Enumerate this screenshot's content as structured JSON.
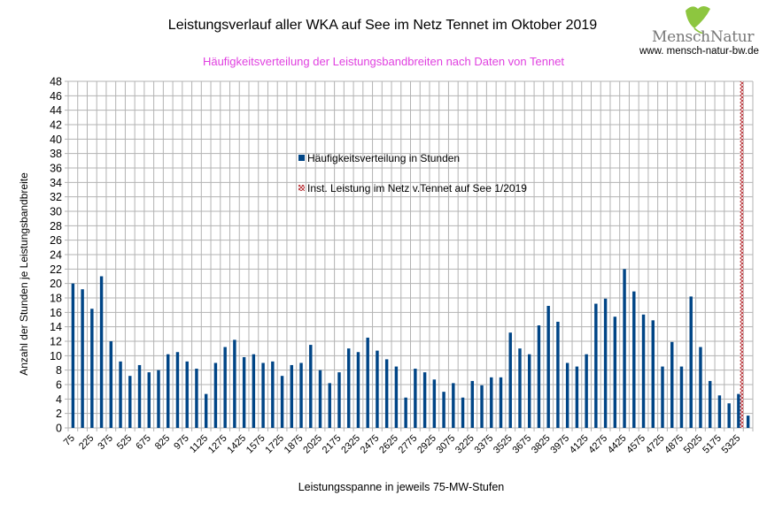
{
  "header": {
    "title": "Leistungsverlauf aller WKA auf See im Netz Tennet im Oktober 2019",
    "subtitle": "Häufigkeitsverteilung der Leistungsbandbreiten nach Daten von Tennet",
    "logo_text_a": "Mensch",
    "logo_text_b": "Natur",
    "logo_url": "www. mensch-natur-bw.de"
  },
  "colors": {
    "bar": "#004586",
    "hatch": "#b5272d",
    "subtitle": "#e040e0",
    "grid": "#b3b3b3",
    "logo_leaf": "#8dc63f",
    "logo_text": "#7a7a7a"
  },
  "chart_data": {
    "type": "bar",
    "title": "Leistungsverlauf aller WKA auf See im Netz Tennet im Oktober 2019",
    "subtitle": "Häufigkeitsverteilung der Leistungsbandbreiten nach Daten von Tennet",
    "xlabel": "Leistungsspanne in jeweils 75-MW-Stufen",
    "ylabel": "Anzahl der Stunden je Leistungsbandbreite",
    "ylim": [
      0,
      48
    ],
    "ytick_step": 2,
    "grid": true,
    "legend_position": "center",
    "categories": [
      75,
      150,
      225,
      300,
      375,
      450,
      525,
      600,
      675,
      750,
      825,
      900,
      975,
      1050,
      1125,
      1200,
      1275,
      1350,
      1425,
      1500,
      1575,
      1650,
      1725,
      1800,
      1875,
      1950,
      2025,
      2100,
      2175,
      2250,
      2325,
      2400,
      2475,
      2550,
      2625,
      2700,
      2775,
      2850,
      2925,
      3000,
      3075,
      3150,
      3225,
      3300,
      3375,
      3450,
      3525,
      3600,
      3675,
      3750,
      3825,
      3900,
      3975,
      4050,
      4125,
      4200,
      4275,
      4350,
      4425,
      4500,
      4575,
      4650,
      4725,
      4800,
      4875,
      4950,
      5025,
      5100,
      5175,
      5250,
      5325,
      5400
    ],
    "xtick_labels": [
      "75",
      "225",
      "375",
      "525",
      "675",
      "825",
      "975",
      "1125",
      "1275",
      "1425",
      "1575",
      "1725",
      "1875",
      "2025",
      "2175",
      "2325",
      "2475",
      "2625",
      "2775",
      "2925",
      "3075",
      "3225",
      "3375",
      "3525",
      "3675",
      "3825",
      "3975",
      "4125",
      "4275",
      "4425",
      "4575",
      "4725",
      "4875",
      "5025",
      "5175",
      "5325"
    ],
    "series": [
      {
        "name": "Häufigkeitsverteilung in Stunden",
        "style": "solid",
        "values": [
          20.0,
          19.2,
          16.5,
          21.0,
          12.0,
          9.2,
          7.2,
          8.7,
          7.7,
          8.0,
          10.2,
          10.5,
          9.2,
          8.2,
          4.7,
          9.0,
          11.2,
          12.2,
          9.8,
          10.2,
          9.0,
          9.2,
          7.2,
          8.7,
          9.0,
          11.5,
          8.0,
          6.2,
          7.7,
          11.0,
          10.5,
          12.5,
          10.7,
          9.5,
          8.5,
          4.2,
          8.2,
          7.7,
          6.7,
          5.0,
          6.2,
          4.2,
          6.5,
          5.9,
          7.0,
          7.0,
          13.2,
          11.0,
          10.2,
          14.2,
          16.9,
          14.7,
          9.0,
          8.5,
          10.2,
          17.2,
          17.9,
          15.4,
          22.0,
          18.9,
          15.7,
          14.9,
          8.5,
          11.9,
          8.5,
          18.2,
          11.2,
          6.5,
          4.5,
          3.4,
          4.7,
          1.7
        ]
      },
      {
        "name": "Inst. Leistung im Netz v.Tennet auf See 1/2019",
        "style": "hatched",
        "category": 5325,
        "value": 48
      }
    ]
  }
}
